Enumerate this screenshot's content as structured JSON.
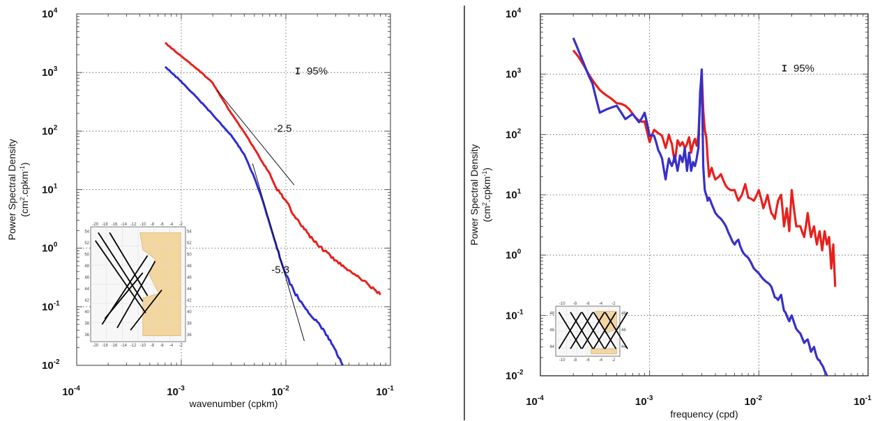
{
  "chart_data": [
    {
      "type": "line",
      "title": "",
      "xlabel": "wavenumber (cpkm)",
      "ylabel": "Power Spectral Density",
      "ylabel_units": "(cm²·cpkm⁻¹)",
      "ylabel_unit_prefix": "(cm",
      "ylabel_unit_mid": ".cpkm",
      "ylabel_unit_suffix": ")",
      "xscale": "log",
      "yscale": "log",
      "xlim": [
        0.0001,
        0.1
      ],
      "ylim": [
        0.01,
        10000
      ],
      "grid": true,
      "x_ticks": [
        {
          "base": "10",
          "exp": "-4"
        },
        {
          "base": "10",
          "exp": "-3"
        },
        {
          "base": "10",
          "exp": "-2"
        },
        {
          "base": "10",
          "exp": "-1"
        }
      ],
      "y_ticks": [
        {
          "base": "10",
          "exp": "-2"
        },
        {
          "base": "10",
          "exp": "-1"
        },
        {
          "base": "10",
          "exp": "0"
        },
        {
          "base": "10",
          "exp": "1"
        },
        {
          "base": "10",
          "exp": "2"
        },
        {
          "base": "10",
          "exp": "3"
        },
        {
          "base": "10",
          "exp": "4"
        }
      ],
      "series": [
        {
          "color": "#e8201c",
          "x": [
            0.0007,
            0.001,
            0.0015,
            0.002,
            0.0025,
            0.003,
            0.004,
            0.005,
            0.006,
            0.007,
            0.008,
            0.01,
            0.012,
            0.015,
            0.02,
            0.03,
            0.04,
            0.05,
            0.06,
            0.07,
            0.08
          ],
          "y": [
            3200,
            1900,
            1050,
            660,
            340,
            200,
            95,
            50,
            29,
            19,
            11,
            6.5,
            3.6,
            2.1,
            1.15,
            0.62,
            0.42,
            0.32,
            0.25,
            0.2,
            0.16
          ]
        },
        {
          "color": "#2d2bd6",
          "x": [
            0.0007,
            0.001,
            0.0015,
            0.002,
            0.003,
            0.004,
            0.005,
            0.006,
            0.007,
            0.008,
            0.009,
            0.01,
            0.012,
            0.015,
            0.02,
            0.025,
            0.03,
            0.035
          ],
          "y": [
            1250,
            700,
            330,
            190,
            85,
            40,
            16,
            6.5,
            2.6,
            1.2,
            0.6,
            0.35,
            0.18,
            0.1,
            0.055,
            0.032,
            0.018,
            0.01
          ]
        }
      ],
      "reference_lines": [
        {
          "label": "-2.5",
          "x": [
            0.0022,
            0.012
          ],
          "y": [
            500,
            12
          ]
        },
        {
          "label": "-5.3",
          "x": [
            0.0048,
            0.015
          ],
          "y": [
            28,
            0.026
          ]
        }
      ],
      "confidence_label": "95%",
      "inset_map": {
        "x_ticks": [
          "-20",
          "-18",
          "-16",
          "-14",
          "-12",
          "-10",
          "-8",
          "-6",
          "-4",
          "-2"
        ],
        "y_ticks": [
          "54",
          "52",
          "50",
          "48",
          "46",
          "44",
          "42",
          "40",
          "38",
          "36"
        ]
      }
    },
    {
      "type": "line",
      "title": "",
      "xlabel": "frequency (cpd)",
      "ylabel": "Power Spectral Density",
      "ylabel_units": "(cm²·cpkm⁻¹)",
      "ylabel_unit_prefix": "(cm",
      "ylabel_unit_mid": ".cpkm",
      "ylabel_unit_suffix": ")",
      "xscale": "log",
      "yscale": "log",
      "xlim": [
        0.0001,
        0.1
      ],
      "ylim": [
        0.01,
        10000
      ],
      "grid": true,
      "x_ticks": [
        {
          "base": "10",
          "exp": "-4"
        },
        {
          "base": "10",
          "exp": "-3"
        },
        {
          "base": "10",
          "exp": "-2"
        },
        {
          "base": "10",
          "exp": "-1"
        }
      ],
      "y_ticks": [
        {
          "base": "10",
          "exp": "-2"
        },
        {
          "base": "10",
          "exp": "-1"
        },
        {
          "base": "10",
          "exp": "0"
        },
        {
          "base": "10",
          "exp": "1"
        },
        {
          "base": "10",
          "exp": "2"
        },
        {
          "base": "10",
          "exp": "3"
        },
        {
          "base": "10",
          "exp": "4"
        }
      ],
      "series": [
        {
          "color": "#e8201c",
          "x": [
            0.0002,
            0.00025,
            0.0003,
            0.00035,
            0.0004,
            0.0005,
            0.0006,
            0.0007,
            0.0008,
            0.0009,
            0.001,
            0.0011,
            0.0012,
            0.0013,
            0.0014,
            0.0015,
            0.0016,
            0.0017,
            0.0018,
            0.0019,
            0.002,
            0.0021,
            0.0022,
            0.0023,
            0.0024,
            0.0025,
            0.0026,
            0.0027,
            0.0028,
            0.0029,
            0.003,
            0.0031,
            0.0032,
            0.0033,
            0.0034,
            0.0035,
            0.0037,
            0.004,
            0.0045,
            0.005,
            0.0055,
            0.006,
            0.0065,
            0.007,
            0.0075,
            0.008,
            0.009,
            0.01,
            0.011,
            0.012,
            0.013,
            0.014,
            0.015,
            0.016,
            0.017,
            0.018,
            0.019,
            0.02,
            0.022,
            0.024,
            0.026,
            0.028,
            0.03,
            0.032,
            0.034,
            0.036,
            0.038,
            0.04,
            0.042,
            0.044,
            0.046,
            0.048,
            0.05
          ],
          "y": [
            2500,
            1400,
            800,
            550,
            450,
            330,
            300,
            220,
            170,
            165,
            75,
            120,
            105,
            95,
            60,
            100,
            70,
            35,
            80,
            65,
            75,
            60,
            70,
            90,
            50,
            70,
            85,
            65,
            100,
            400,
            1100,
            250,
            120,
            90,
            40,
            20,
            28,
            18,
            22,
            14,
            12,
            12,
            8,
            10,
            15,
            9,
            8,
            12,
            6,
            10,
            5,
            4,
            8,
            10,
            3,
            6,
            2.5,
            12,
            3,
            3,
            2,
            5,
            2,
            3,
            1.5,
            2.5,
            1.2,
            2.5,
            1.5,
            2,
            0.6,
            1.5,
            0.3
          ]
        },
        {
          "color": "#3730c9",
          "x": [
            0.0002,
            0.00025,
            0.0003,
            0.00035,
            0.0004,
            0.0005,
            0.0006,
            0.0007,
            0.0008,
            0.0009,
            0.001,
            0.0011,
            0.0012,
            0.0013,
            0.0014,
            0.0015,
            0.0016,
            0.0017,
            0.0018,
            0.0019,
            0.002,
            0.0021,
            0.0022,
            0.0023,
            0.0024,
            0.0025,
            0.0026,
            0.0027,
            0.0028,
            0.0029,
            0.003,
            0.0031,
            0.0032,
            0.0033,
            0.0034,
            0.0035,
            0.0037,
            0.004,
            0.0045,
            0.005,
            0.0055,
            0.006,
            0.0065,
            0.007,
            0.0075,
            0.008,
            0.009,
            0.01,
            0.011,
            0.012,
            0.013,
            0.014,
            0.015,
            0.016,
            0.017,
            0.018,
            0.019,
            0.02,
            0.022,
            0.024,
            0.026,
            0.028,
            0.03,
            0.032,
            0.034,
            0.036,
            0.038,
            0.04,
            0.042
          ],
          "y": [
            4000,
            1500,
            700,
            230,
            260,
            300,
            180,
            220,
            160,
            230,
            95,
            95,
            55,
            40,
            18,
            40,
            30,
            45,
            25,
            45,
            35,
            60,
            25,
            50,
            25,
            35,
            30,
            40,
            60,
            500,
            1200,
            30,
            12,
            10,
            8,
            9,
            7,
            5,
            4,
            3,
            2,
            1.5,
            1.8,
            1.2,
            1.0,
            0.9,
            0.6,
            0.5,
            0.4,
            0.35,
            0.3,
            0.2,
            0.18,
            0.22,
            0.12,
            0.1,
            0.08,
            0.1,
            0.06,
            0.05,
            0.035,
            0.04,
            0.025,
            0.03,
            0.02,
            0.018,
            0.015,
            0.012,
            0.01
          ]
        }
      ],
      "confidence_label": "95%",
      "inset_map": {
        "x_ticks": [
          "-10",
          "-8",
          "-6",
          "-4",
          "-2"
        ],
        "y_ticks": [
          "48",
          "46",
          "44"
        ]
      }
    }
  ]
}
